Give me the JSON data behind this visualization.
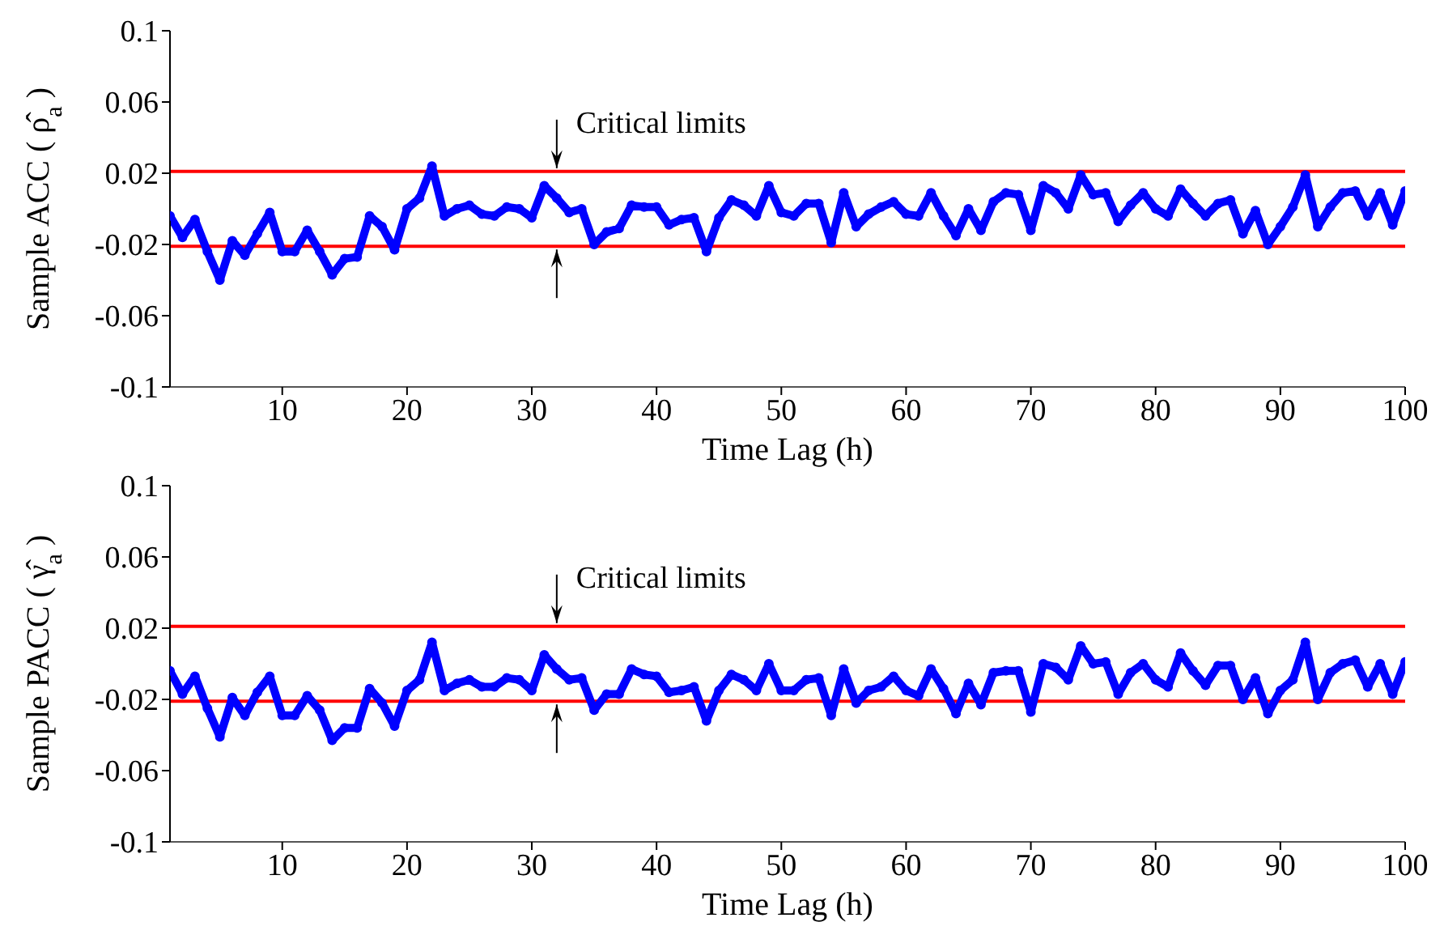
{
  "chart_data": [
    {
      "type": "line",
      "ylabel": "Sample ACC ( ρ̂$_{a}$ )",
      "xlabel": "Time Lag (h)",
      "x": [
        1,
        2,
        3,
        4,
        5,
        6,
        7,
        8,
        9,
        10,
        11,
        12,
        13,
        14,
        15,
        16,
        17,
        18,
        19,
        20,
        21,
        22,
        23,
        24,
        25,
        26,
        27,
        28,
        29,
        30,
        31,
        32,
        33,
        34,
        35,
        36,
        37,
        38,
        39,
        40,
        41,
        42,
        43,
        44,
        45,
        46,
        47,
        48,
        49,
        50,
        51,
        52,
        53,
        54,
        55,
        56,
        57,
        58,
        59,
        60,
        61,
        62,
        63,
        64,
        65,
        66,
        67,
        68,
        69,
        70,
        71,
        72,
        73,
        74,
        75,
        76,
        77,
        78,
        79,
        80,
        81,
        82,
        83,
        84,
        85,
        86,
        87,
        88,
        89,
        90,
        91,
        92,
        93,
        94,
        95,
        96,
        97,
        98,
        99,
        100
      ],
      "series": [
        {
          "color": "#0000ff",
          "values": [
            -0.004,
            -0.016,
            -0.006,
            -0.024,
            -0.04,
            -0.018,
            -0.026,
            -0.014,
            -0.002,
            -0.024,
            -0.024,
            -0.012,
            -0.024,
            -0.037,
            -0.028,
            -0.027,
            -0.004,
            -0.01,
            -0.023,
            0.0,
            0.006,
            0.024,
            -0.004,
            0.0,
            0.002,
            -0.003,
            -0.004,
            0.001,
            0.0,
            -0.005,
            0.013,
            0.006,
            -0.002,
            0.0,
            -0.02,
            -0.013,
            -0.011,
            0.002,
            0.001,
            0.001,
            -0.009,
            -0.006,
            -0.005,
            -0.024,
            -0.005,
            0.005,
            0.002,
            -0.004,
            0.013,
            -0.002,
            -0.004,
            0.003,
            0.003,
            -0.019,
            0.009,
            -0.01,
            -0.003,
            0.001,
            0.004,
            -0.003,
            -0.004,
            0.009,
            -0.004,
            -0.015,
            0.0,
            -0.012,
            0.004,
            0.009,
            0.008,
            -0.012,
            0.013,
            0.009,
            0.0,
            0.019,
            0.008,
            0.009,
            -0.007,
            0.002,
            0.009,
            0.0,
            -0.004,
            0.011,
            0.003,
            -0.004,
            0.003,
            0.005,
            -0.014,
            -0.001,
            -0.02,
            -0.01,
            0.001,
            0.019,
            -0.01,
            0.001,
            0.009,
            0.01,
            -0.004,
            0.009,
            -0.009,
            0.01
          ]
        }
      ],
      "xlim": [
        1,
        100
      ],
      "xticks": [
        10,
        20,
        30,
        40,
        50,
        60,
        70,
        80,
        90,
        100
      ],
      "ylim": [
        -0.1,
        0.1
      ],
      "yticks": [
        -0.1,
        -0.06,
        -0.02,
        0.02,
        0.06,
        0.1
      ],
      "ref_lines": [
        {
          "axis": "y",
          "value": 0.021,
          "color": "#ff0000"
        },
        {
          "axis": "y",
          "value": -0.021,
          "color": "#ff0000"
        }
      ],
      "annotations": [
        {
          "text": "Critical limits",
          "x": 32,
          "y": 0.021
        }
      ],
      "grid": false,
      "legend": false,
      "marker": "circle",
      "line_style": "solid"
    },
    {
      "type": "line",
      "ylabel": "Sample PACC ( γ̂$_{a}$ )",
      "xlabel": "Time Lag (h)",
      "x": [
        1,
        2,
        3,
        4,
        5,
        6,
        7,
        8,
        9,
        10,
        11,
        12,
        13,
        14,
        15,
        16,
        17,
        18,
        19,
        20,
        21,
        22,
        23,
        24,
        25,
        26,
        27,
        28,
        29,
        30,
        31,
        32,
        33,
        34,
        35,
        36,
        37,
        38,
        39,
        40,
        41,
        42,
        43,
        44,
        45,
        46,
        47,
        48,
        49,
        50,
        51,
        52,
        53,
        54,
        55,
        56,
        57,
        58,
        59,
        60,
        61,
        62,
        63,
        64,
        65,
        66,
        67,
        68,
        69,
        70,
        71,
        72,
        73,
        74,
        75,
        76,
        77,
        78,
        79,
        80,
        81,
        82,
        83,
        84,
        85,
        86,
        87,
        88,
        89,
        90,
        91,
        92,
        93,
        94,
        95,
        96,
        97,
        98,
        99,
        100
      ],
      "series": [
        {
          "color": "#0000ff",
          "values": [
            -0.004,
            -0.017,
            -0.007,
            -0.025,
            -0.041,
            -0.019,
            -0.029,
            -0.016,
            -0.007,
            -0.029,
            -0.029,
            -0.018,
            -0.026,
            -0.043,
            -0.036,
            -0.036,
            -0.014,
            -0.022,
            -0.035,
            -0.015,
            -0.009,
            0.012,
            -0.015,
            -0.011,
            -0.009,
            -0.013,
            -0.013,
            -0.008,
            -0.009,
            -0.015,
            0.005,
            -0.003,
            -0.009,
            -0.008,
            -0.026,
            -0.017,
            -0.017,
            -0.003,
            -0.006,
            -0.007,
            -0.016,
            -0.015,
            -0.013,
            -0.032,
            -0.015,
            -0.006,
            -0.009,
            -0.015,
            0.0,
            -0.015,
            -0.015,
            -0.009,
            -0.008,
            -0.029,
            -0.003,
            -0.022,
            -0.015,
            -0.013,
            -0.007,
            -0.015,
            -0.018,
            -0.003,
            -0.014,
            -0.028,
            -0.011,
            -0.023,
            -0.005,
            -0.004,
            -0.004,
            -0.027,
            0.0,
            -0.002,
            -0.009,
            0.01,
            0.0,
            0.001,
            -0.017,
            -0.005,
            0.0,
            -0.009,
            -0.013,
            0.006,
            -0.004,
            -0.012,
            -0.001,
            -0.001,
            -0.02,
            -0.008,
            -0.028,
            -0.015,
            -0.009,
            0.012,
            -0.02,
            -0.005,
            0.0,
            0.002,
            -0.013,
            0.0,
            -0.017,
            0.001
          ]
        }
      ],
      "xlim": [
        1,
        100
      ],
      "xticks": [
        10,
        20,
        30,
        40,
        50,
        60,
        70,
        80,
        90,
        100
      ],
      "ylim": [
        -0.1,
        0.1
      ],
      "yticks": [
        -0.1,
        -0.06,
        -0.02,
        0.02,
        0.06,
        0.1
      ],
      "ref_lines": [
        {
          "axis": "y",
          "value": 0.021,
          "color": "#ff0000"
        },
        {
          "axis": "y",
          "value": -0.021,
          "color": "#ff0000"
        }
      ],
      "annotations": [
        {
          "text": "Critical limits",
          "x": 32,
          "y": 0.021
        }
      ],
      "grid": false,
      "legend": false,
      "marker": "circle",
      "line_style": "solid"
    }
  ]
}
